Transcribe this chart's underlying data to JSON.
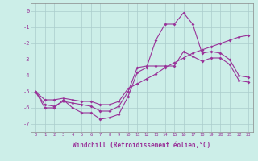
{
  "xlabel": "Windchill (Refroidissement éolien,°C)",
  "bg_color": "#cceee8",
  "grid_color": "#aacccc",
  "line_color": "#993399",
  "line1_x": [
    0,
    1,
    2,
    3,
    4,
    5,
    6,
    7,
    8,
    9,
    10,
    11,
    12,
    13,
    14,
    15,
    16,
    17,
    18,
    19,
    20,
    21,
    22,
    23
  ],
  "line1_y": [
    -5.0,
    -6.0,
    -6.0,
    -5.5,
    -6.0,
    -6.3,
    -6.3,
    -6.7,
    -6.6,
    -6.4,
    -5.3,
    -3.8,
    -3.5,
    -1.8,
    -0.8,
    -0.8,
    -0.1,
    -0.8,
    -2.6,
    -2.5,
    -2.6,
    -3.0,
    -4.0,
    -4.1
  ],
  "line2_x": [
    0,
    1,
    2,
    3,
    4,
    5,
    6,
    7,
    8,
    9,
    10,
    11,
    12,
    13,
    14,
    15,
    16,
    17,
    18,
    19,
    20,
    21,
    22,
    23
  ],
  "line2_y": [
    -5.0,
    -5.8,
    -5.9,
    -5.6,
    -5.7,
    -5.8,
    -5.9,
    -6.2,
    -6.2,
    -5.9,
    -5.0,
    -3.5,
    -3.4,
    -3.4,
    -3.4,
    -3.4,
    -2.5,
    -2.8,
    -3.1,
    -2.9,
    -2.9,
    -3.3,
    -4.3,
    -4.4
  ],
  "line3_x": [
    0,
    1,
    2,
    3,
    4,
    5,
    6,
    7,
    8,
    9,
    10,
    11,
    12,
    13,
    14,
    15,
    16,
    17,
    18,
    19,
    20,
    21,
    22,
    23
  ],
  "line3_y": [
    -5.0,
    -5.5,
    -5.5,
    -5.4,
    -5.5,
    -5.6,
    -5.6,
    -5.8,
    -5.8,
    -5.6,
    -4.8,
    -4.5,
    -4.2,
    -3.9,
    -3.5,
    -3.2,
    -2.9,
    -2.6,
    -2.4,
    -2.2,
    -2.0,
    -1.8,
    -1.6,
    -1.5
  ],
  "ylim": [
    -7.5,
    0.5
  ],
  "xlim": [
    -0.5,
    23.5
  ],
  "yticks": [
    0,
    -1,
    -2,
    -3,
    -4,
    -5,
    -6,
    -7
  ],
  "xticks": [
    0,
    1,
    2,
    3,
    4,
    5,
    6,
    7,
    8,
    9,
    10,
    11,
    12,
    13,
    14,
    15,
    16,
    17,
    18,
    19,
    20,
    21,
    22,
    23
  ],
  "marker": "D",
  "markersize": 2.0,
  "linewidth": 0.8
}
